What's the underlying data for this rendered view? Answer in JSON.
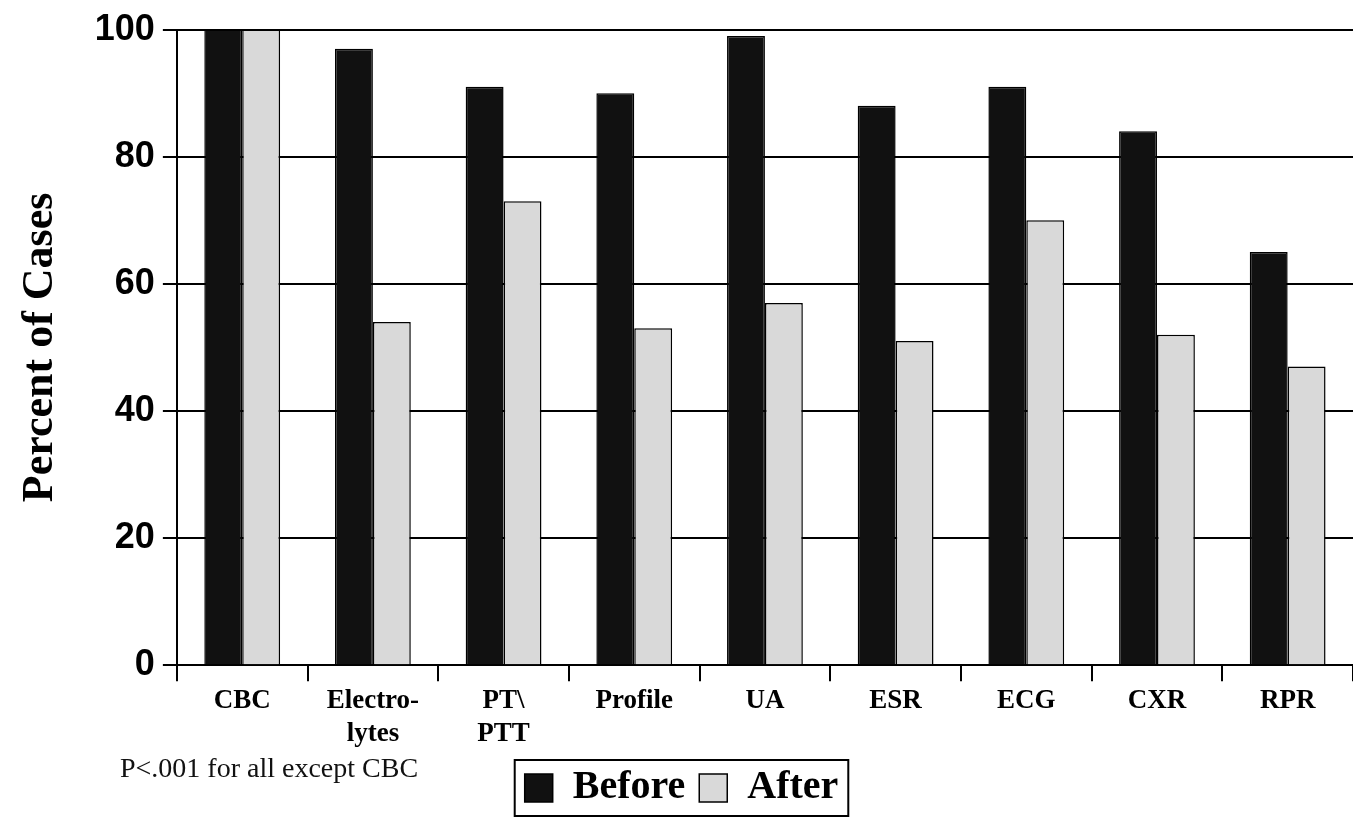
{
  "chart_data": {
    "type": "bar",
    "ylabel": "Percent of Cases",
    "categories": [
      "CBC",
      "Electro-\nlytes",
      "PT\\\nPTT",
      "Profile",
      "UA",
      "ESR",
      "ECG",
      "CXR",
      "RPR"
    ],
    "series": [
      {
        "name": "Before",
        "color": "#111111",
        "values": [
          100,
          97,
          91,
          90,
          99,
          88,
          91,
          84,
          65
        ]
      },
      {
        "name": "After",
        "color": "#d9d9d9",
        "values": [
          100,
          54,
          73,
          53,
          57,
          51,
          70,
          52,
          47
        ]
      }
    ],
    "ylim": [
      0,
      100
    ],
    "yticks": [
      0,
      20,
      40,
      60,
      80,
      100
    ],
    "grid": "y",
    "legend": "bottom",
    "annotations": [
      "P<.001 for all except CBC"
    ]
  }
}
